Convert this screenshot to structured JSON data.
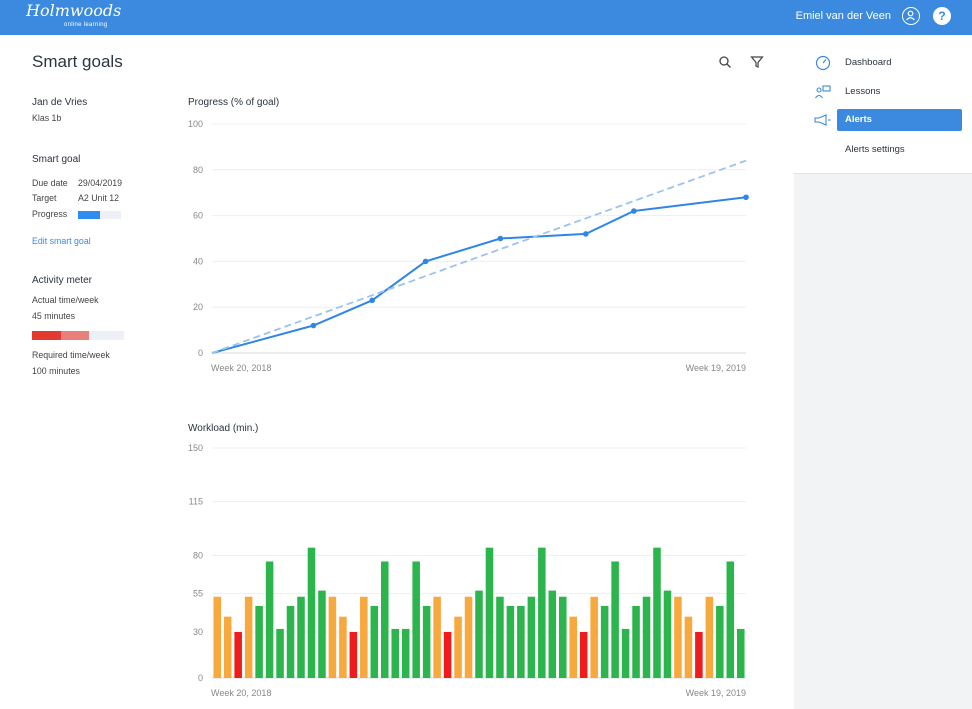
{
  "header": {
    "logo_text": "Holmwoods",
    "logo_sub": "online learning",
    "user_name": "Emiel van der Veen",
    "help_label": "?",
    "user_icon": "user-circle-icon",
    "color": "#3b8ae0"
  },
  "sidebar": {
    "items": [
      {
        "label": "Dashboard",
        "icon": "dashboard-gauge-icon"
      },
      {
        "label": "Lessons",
        "icon": "lessons-icon"
      },
      {
        "label": "Alerts",
        "icon": "megaphone-icon",
        "active": true
      }
    ],
    "sub_item": "Alerts settings"
  },
  "page": {
    "title": "Smart goals",
    "tools": [
      "search-icon",
      "filter-icon"
    ]
  },
  "student": {
    "name": "Jan de Vries",
    "class": "Klas 1b"
  },
  "smart_goal": {
    "heading": "Smart goal",
    "due_label": "Due date",
    "due_value": "29/04/2019",
    "target_label": "Target",
    "target_value": "A2 Unit 12",
    "progress_label": "Progress",
    "progress_fraction": 0.5,
    "edit_link": "Edit smart goal"
  },
  "activity": {
    "heading": "Activity meter",
    "actual_label": "Actual time/week",
    "actual_value": "45 minutes",
    "required_label": "Required time/week",
    "required_value": "100 minutes"
  },
  "chart_data": [
    {
      "type": "line",
      "title": "Progress (% of goal)",
      "ylim": [
        0,
        100
      ],
      "yticks": [
        0,
        20,
        40,
        60,
        80,
        100
      ],
      "x_start_label": "Week 20, 2018",
      "x_end_label": "Week 19, 2019",
      "grid": true,
      "series": [
        {
          "style": "solid",
          "color": "#2f86e6",
          "markers": true,
          "x": [
            0,
            19,
            30,
            40,
            54,
            70,
            79,
            100
          ],
          "y": [
            0,
            12,
            23,
            40,
            50,
            52,
            62,
            68
          ]
        },
        {
          "style": "dashed",
          "color": "#9cc3ee",
          "markers": false,
          "x": [
            0,
            100
          ],
          "y": [
            0,
            84
          ]
        }
      ]
    },
    {
      "type": "bar",
      "title": "Workload (min.)",
      "ylim": [
        0,
        150
      ],
      "yticks": [
        0,
        30,
        55,
        80,
        115,
        150
      ],
      "x_start_label": "Week 20, 2018",
      "x_end_label": "Week 19, 2019",
      "grid": true,
      "colors": {
        "green": "#2db54d",
        "orange": "#f8a93e",
        "red": "#ee1c1c"
      },
      "values": [
        53,
        40,
        30,
        53,
        47,
        76,
        32,
        47,
        53,
        85,
        57,
        53,
        40,
        30,
        53,
        47,
        76,
        32,
        32,
        76,
        47,
        53,
        30,
        40,
        53,
        57,
        85,
        53,
        47,
        47,
        53,
        85,
        57,
        53,
        40,
        30,
        53,
        47,
        76,
        32,
        47,
        53,
        85,
        57,
        53,
        40,
        30,
        53,
        47,
        76,
        32
      ],
      "bar_colors": [
        "orange",
        "orange",
        "red",
        "orange",
        "green",
        "green",
        "green",
        "green",
        "green",
        "green",
        "green",
        "orange",
        "orange",
        "red",
        "orange",
        "green",
        "green",
        "green",
        "green",
        "green",
        "green",
        "orange",
        "red",
        "orange",
        "orange",
        "green",
        "green",
        "green",
        "green",
        "green",
        "green",
        "green",
        "green",
        "green",
        "orange",
        "red",
        "orange",
        "green",
        "green",
        "green",
        "green",
        "green",
        "green",
        "green",
        "orange",
        "orange",
        "red",
        "orange",
        "green",
        "green",
        "green"
      ]
    }
  ]
}
